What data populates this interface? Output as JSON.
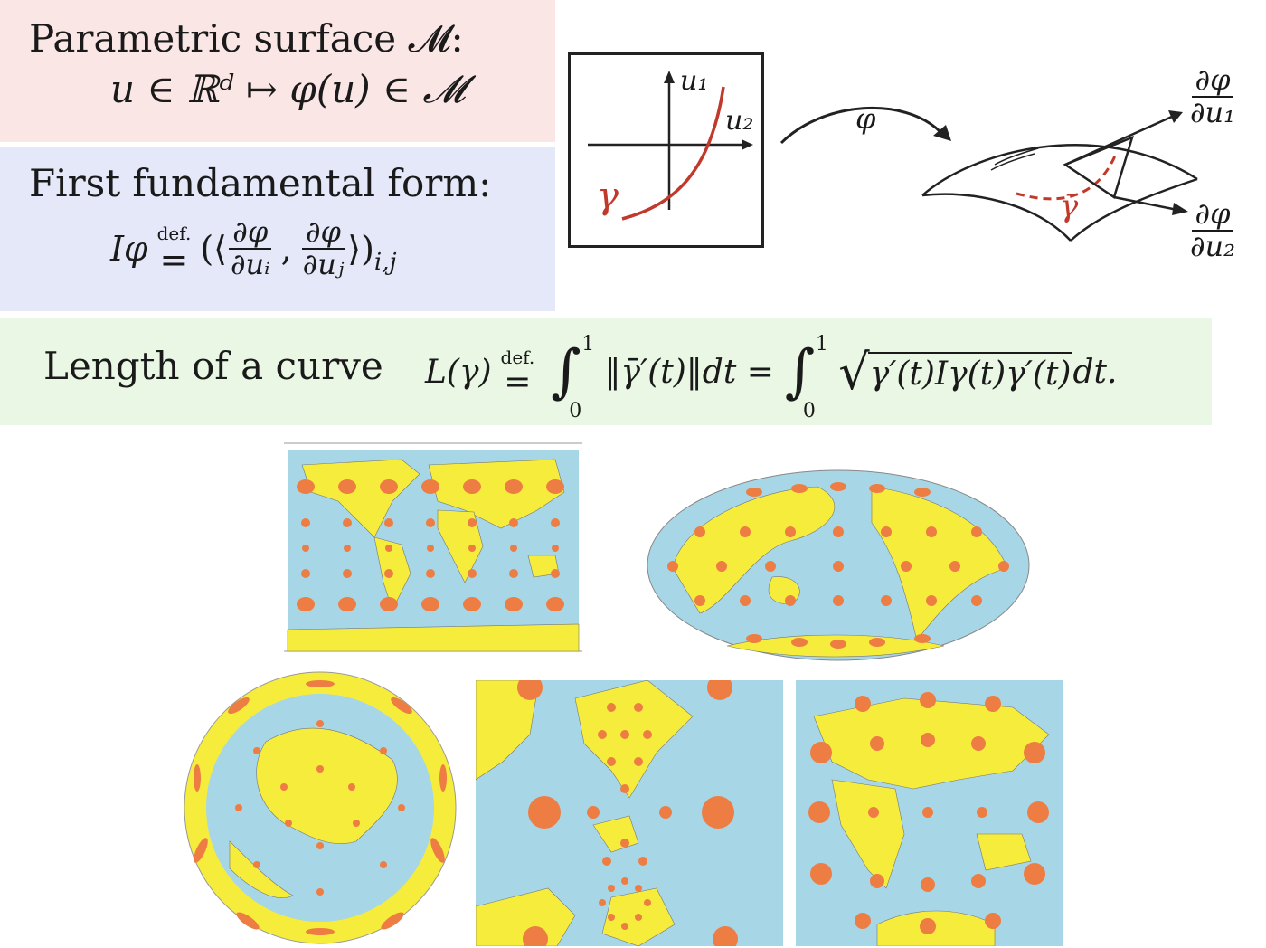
{
  "surface": {
    "title": "Parametric surface 𝓜:",
    "formula": "u ∈ ℝᵈ ↦ φ(u) ∈ 𝓜"
  },
  "form": {
    "title": "First fundamental form:",
    "lhs": "Iφ",
    "def": "def.",
    "eq": "=",
    "open": "(⟨",
    "comma": ",",
    "close": "⟩)",
    "subscript": "i,j",
    "num": "∂φ",
    "den_i": "∂uᵢ",
    "den_j": "∂uⱼ"
  },
  "length": {
    "label": "Length of a curve",
    "lhs": "L(γ)",
    "def": "def.",
    "eq": "=",
    "upper": "1",
    "lower": "0",
    "middle": "‖γ̄′(t)‖dt =",
    "sqrt_body": "γ′(t)Iγ(t)γ′(t)",
    "tail": "dt."
  },
  "diagram": {
    "axis_u1": "u₁",
    "axis_u2": "u₂",
    "gamma": "γ",
    "map_symbol": "φ",
    "gamma_bar": "γ̄",
    "d1_num": "∂φ",
    "d1_den": "∂u₁",
    "d2_num": "∂φ",
    "d2_den": "∂u₂"
  },
  "colors": {
    "ocean": "#a7d6e6",
    "land": "#f6ec3c",
    "indicatrix": "#ee7d43",
    "curve_red": "#c0392b",
    "surface_bg": "#fbe6e6",
    "form_bg": "#e4e8f9",
    "length_bg": "#e9f7e4"
  }
}
